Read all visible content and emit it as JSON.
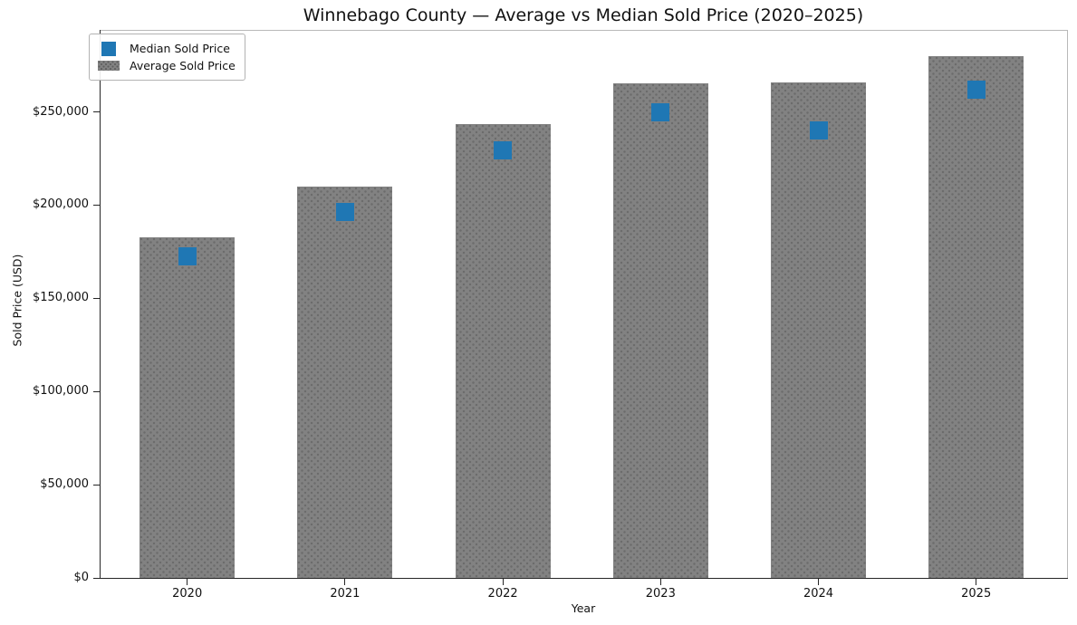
{
  "chart_data": {
    "type": "bar",
    "title": "Winnebago County — Average vs Median Sold Price (2020–2025)",
    "xlabel": "Year",
    "ylabel": "Sold Price (USD)",
    "categories": [
      "2020",
      "2021",
      "2022",
      "2023",
      "2024",
      "2025"
    ],
    "series": [
      {
        "name": "Median Sold Price",
        "render": "square-marker",
        "color": "#1f77b4",
        "values": [
          172500,
          196500,
          229500,
          250000,
          240000,
          262000
        ]
      },
      {
        "name": "Average Sold Price",
        "render": "bar",
        "color": "#828282",
        "hatch": "dots",
        "values": [
          182500,
          210000,
          243500,
          265500,
          266000,
          280000
        ]
      }
    ],
    "ylim": [
      0,
      294000
    ],
    "yticks": [
      0,
      50000,
      100000,
      150000,
      200000,
      250000
    ],
    "ytick_labels": [
      "$0",
      "$50,000",
      "$100,000",
      "$150,000",
      "$200,000",
      "$250,000"
    ],
    "legend_position": "upper left",
    "grid": false
  }
}
